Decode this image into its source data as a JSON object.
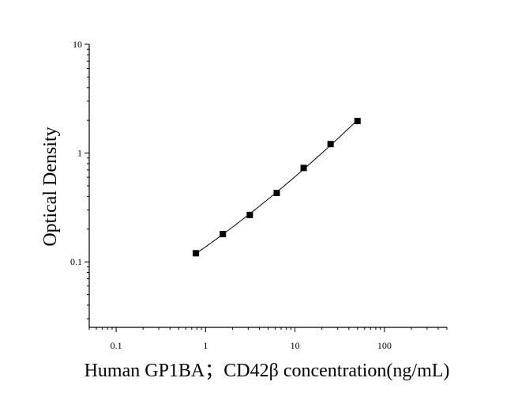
{
  "chart_data": {
    "type": "scatter",
    "title": "",
    "xlabel": "Human GP1BA；CD42β concentration(ng/mL)",
    "ylabel": "Optical Density",
    "x_scale": "log",
    "y_scale": "log",
    "xlim": [
      0.05,
      500
    ],
    "ylim": [
      0.025,
      10
    ],
    "x_ticks": [
      0.1,
      1,
      10,
      100
    ],
    "x_tick_labels": [
      "0.1",
      "1",
      "10",
      "100"
    ],
    "y_ticks": [
      0.1,
      1,
      10
    ],
    "y_tick_labels": [
      "0.1",
      "1",
      "10"
    ],
    "grid": false,
    "legend": "none",
    "marker": "square",
    "fit_line": true,
    "x": [
      0.78,
      1.56,
      3.125,
      6.25,
      12.5,
      25,
      50
    ],
    "y": [
      0.12,
      0.18,
      0.27,
      0.43,
      0.73,
      1.21,
      1.97
    ]
  }
}
